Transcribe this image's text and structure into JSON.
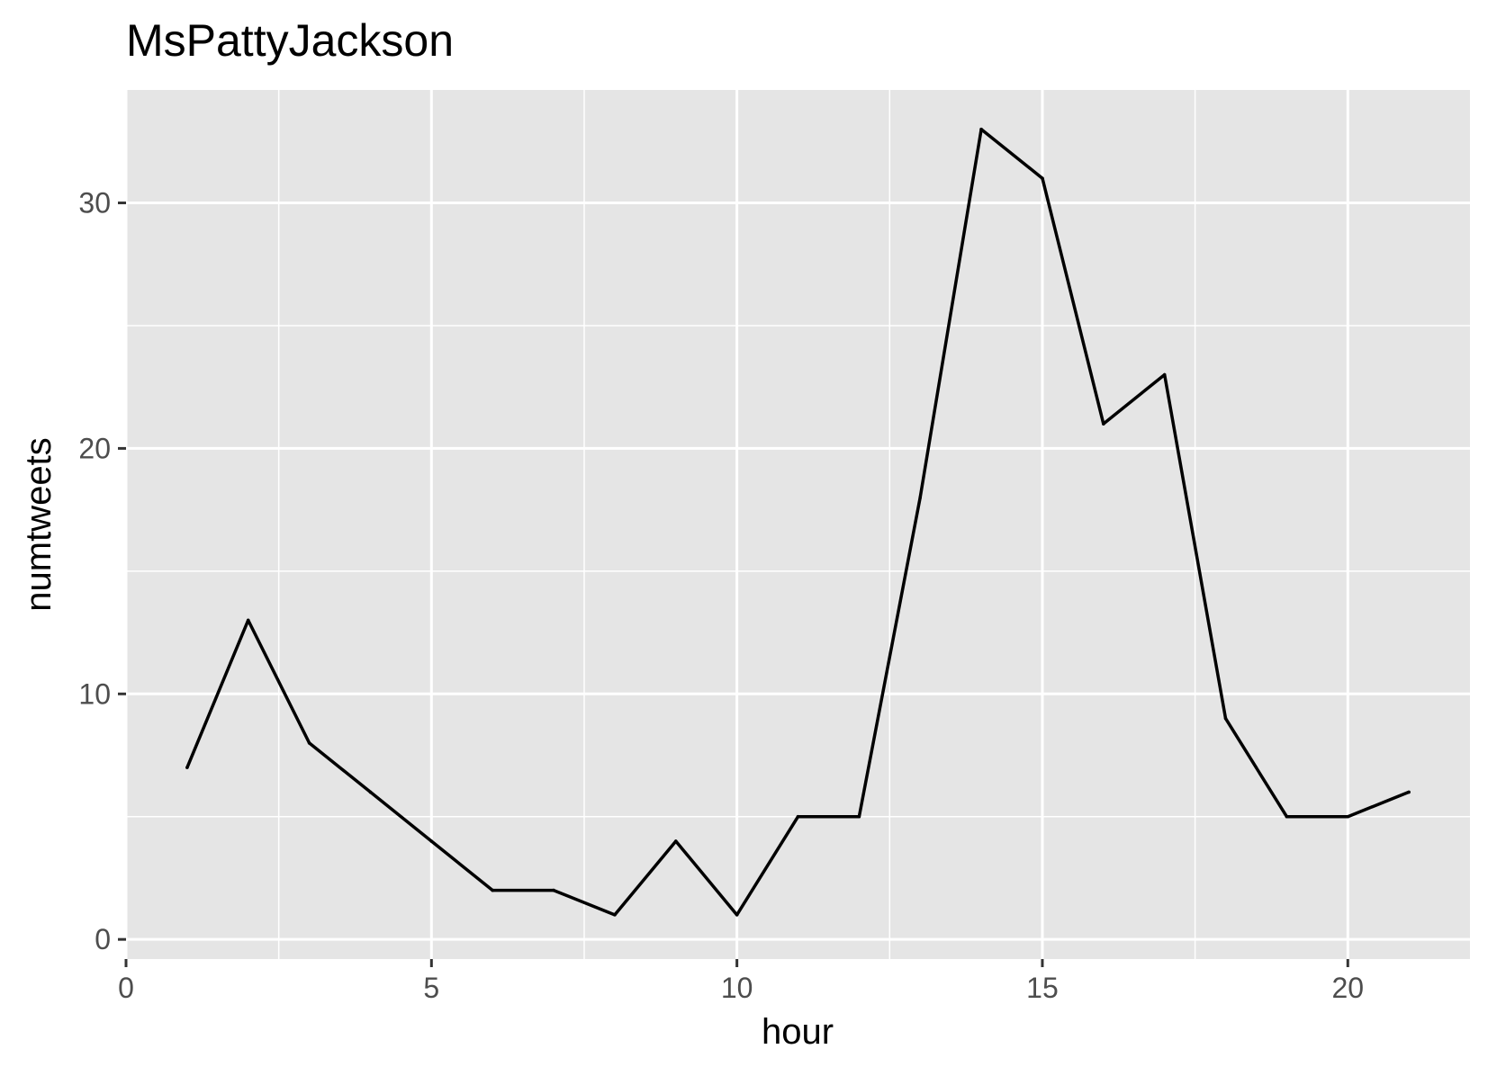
{
  "chart_data": {
    "type": "line",
    "title": "MsPattyJackson",
    "xlabel": "hour",
    "ylabel": "numtweets",
    "xlim": [
      0,
      22.0
    ],
    "ylim": [
      -0.8,
      34.6
    ],
    "x_ticks": [
      0,
      5,
      10,
      15,
      20
    ],
    "x_tick_labels": [
      "0",
      "5",
      "10",
      "15",
      "20"
    ],
    "y_ticks": [
      0,
      10,
      20,
      30
    ],
    "y_tick_labels": [
      "0",
      "10",
      "20",
      "30"
    ],
    "grid": true,
    "legend": "none",
    "series": [
      {
        "x": [
          1,
          2,
          3,
          4,
          5,
          6,
          7,
          8,
          9,
          10,
          11,
          12,
          13,
          14,
          15,
          16,
          17,
          18,
          19,
          20,
          21
        ],
        "values": [
          7,
          13,
          8,
          6,
          4,
          2,
          2,
          1,
          4,
          1,
          5,
          5,
          18,
          33,
          31,
          21,
          23,
          9,
          5,
          5,
          6
        ]
      }
    ]
  },
  "colors": {
    "panel_background": "#e5e5e5",
    "grid": "#ffffff",
    "line": "#000000",
    "tick_text": "#4d4d4d",
    "text": "#000000"
  }
}
